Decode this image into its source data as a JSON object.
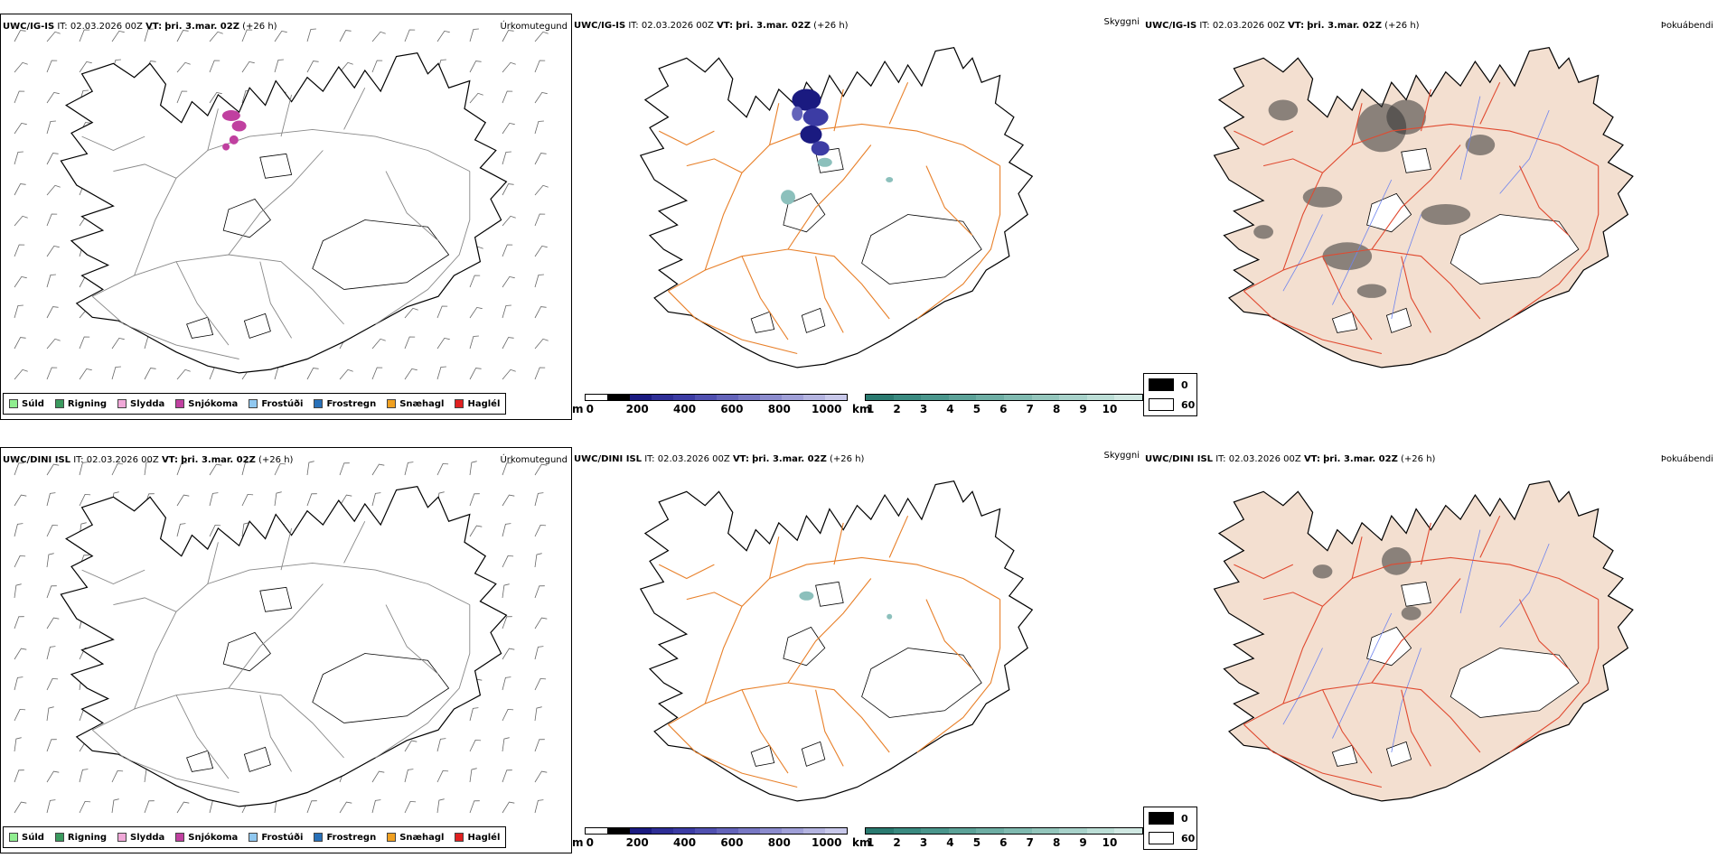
{
  "rows": [
    {
      "model": "UWC/IG-IS",
      "it_label": "IT:",
      "it_value": "02.03.2026 00Z",
      "vt_label": "VT:",
      "vt_value": "þri. 3.mar. 02Z",
      "lead": "(+26 h)"
    },
    {
      "model": "UWC/DINI ISL",
      "it_label": "IT:",
      "it_value": "02.03.2026 00Z",
      "vt_label": "VT:",
      "vt_value": "þri. 3.mar. 02Z",
      "lead": "(+26 h)"
    }
  ],
  "panel_names": {
    "precip_type": "Úrkomutegund",
    "visibility": "Skyggni",
    "fog": "Þokuábendi"
  },
  "precip_legend": [
    {
      "label": "Súld",
      "color": "#90ee90"
    },
    {
      "label": "Rigning",
      "color": "#3a9a5e"
    },
    {
      "label": "Slydda",
      "color": "#f0a8d8"
    },
    {
      "label": "Snjókoma",
      "color": "#c040a0"
    },
    {
      "label": "Frostúði",
      "color": "#90c8f0"
    },
    {
      "label": "Frostregn",
      "color": "#2870b8"
    },
    {
      "label": "Snæhagl",
      "color": "#f0a020"
    },
    {
      "label": "Haglél",
      "color": "#e02020"
    }
  ],
  "elevation_bar": {
    "unit": "m",
    "ticks": [
      "0",
      "200",
      "400",
      "600",
      "800",
      "1000"
    ],
    "colors": [
      "#ffffff",
      "#000000",
      "#1a1a80",
      "#2e2e96",
      "#3c3ca4",
      "#5050b0",
      "#6464ba",
      "#7878c4",
      "#8c8cce",
      "#a0a0d8",
      "#b4b4e0",
      "#c8c8ea"
    ]
  },
  "visibility_bar": {
    "unit": "km",
    "ticks": [
      "1",
      "2",
      "3",
      "4",
      "5",
      "6",
      "7",
      "8",
      "9",
      "10"
    ],
    "colors": [
      "#2a7a70",
      "#3a8a80",
      "#4a968c",
      "#5ca298",
      "#6eaea4",
      "#80bab0",
      "#94c6bc",
      "#a8d2ca",
      "#bcded6",
      "#d0e8e2"
    ]
  },
  "fog_legend": [
    {
      "label": "0",
      "color": "#000000"
    },
    {
      "label": "60",
      "color": "#ffffff"
    }
  ],
  "colors": {
    "land_fog": "#f3dfd0",
    "roads": "#e8802a",
    "roads_fog": "#e04a30",
    "rivers": "#6f84ee",
    "coast": "#000000"
  }
}
